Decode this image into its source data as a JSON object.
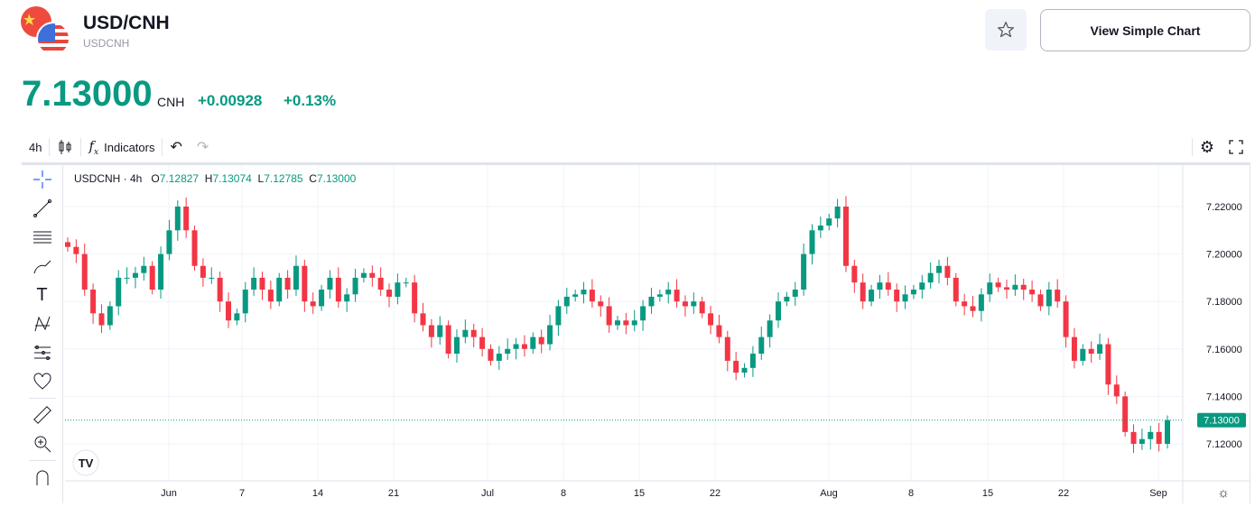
{
  "header": {
    "title": "USD/CNH",
    "symbol": "USDCNH",
    "simple_chart_label": "View Simple Chart"
  },
  "quote": {
    "price": "7.13000",
    "currency": "CNH",
    "change": "+0.00928",
    "change_pct": "+0.13%"
  },
  "toolbar": {
    "interval": "4h",
    "indicators_label": "Indicators"
  },
  "legend": {
    "symbol": "USDCNH · 4h",
    "o_label": "O",
    "o": "7.12827",
    "h_label": "H",
    "h": "7.13074",
    "l_label": "L",
    "l": "7.12785",
    "c_label": "C",
    "c": "7.13000"
  },
  "colors": {
    "up": "#089981",
    "down": "#f23645",
    "accent": "#089981"
  },
  "chart_data": {
    "type": "candlestick",
    "symbol": "USDCNH",
    "interval": "4h",
    "ylim": [
      7.11,
      7.235
    ],
    "y_ticks": [
      "7.22000",
      "7.20000",
      "7.18000",
      "7.16000",
      "7.14000",
      "7.12000"
    ],
    "x_ticks": [
      "Jun",
      "7",
      "14",
      "21",
      "Jul",
      "8",
      "15",
      "22",
      "Aug",
      "8",
      "15",
      "22",
      "Sep"
    ],
    "last_price": "7.13000",
    "first_open": 7.205,
    "closes": [
      7.203,
      7.2,
      7.185,
      7.175,
      7.17,
      7.178,
      7.19,
      7.19,
      7.192,
      7.195,
      7.185,
      7.2,
      7.21,
      7.22,
      7.21,
      7.195,
      7.19,
      7.19,
      7.18,
      7.172,
      7.175,
      7.185,
      7.19,
      7.185,
      7.18,
      7.19,
      7.185,
      7.195,
      7.18,
      7.178,
      7.185,
      7.19,
      7.18,
      7.183,
      7.19,
      7.192,
      7.19,
      7.185,
      7.182,
      7.188,
      7.188,
      7.175,
      7.17,
      7.165,
      7.17,
      7.158,
      7.165,
      7.168,
      7.165,
      7.16,
      7.155,
      7.158,
      7.16,
      7.162,
      7.16,
      7.165,
      7.162,
      7.17,
      7.178,
      7.182,
      7.183,
      7.185,
      7.18,
      7.178,
      7.17,
      7.172,
      7.17,
      7.172,
      7.178,
      7.182,
      7.183,
      7.185,
      7.18,
      7.178,
      7.18,
      7.175,
      7.17,
      7.165,
      7.155,
      7.15,
      7.152,
      7.158,
      7.165,
      7.172,
      7.18,
      7.182,
      7.185,
      7.2,
      7.21,
      7.212,
      7.215,
      7.22,
      7.195,
      7.188,
      7.18,
      7.185,
      7.188,
      7.185,
      7.18,
      7.183,
      7.185,
      7.188,
      7.192,
      7.195,
      7.19,
      7.18,
      7.178,
      7.176,
      7.183,
      7.188,
      7.186,
      7.185,
      7.187,
      7.185,
      7.183,
      7.178,
      7.185,
      7.18,
      7.165,
      7.155,
      7.16,
      7.158,
      7.162,
      7.145,
      7.14,
      7.125,
      7.12,
      7.122,
      7.125,
      7.12,
      7.13
    ]
  }
}
